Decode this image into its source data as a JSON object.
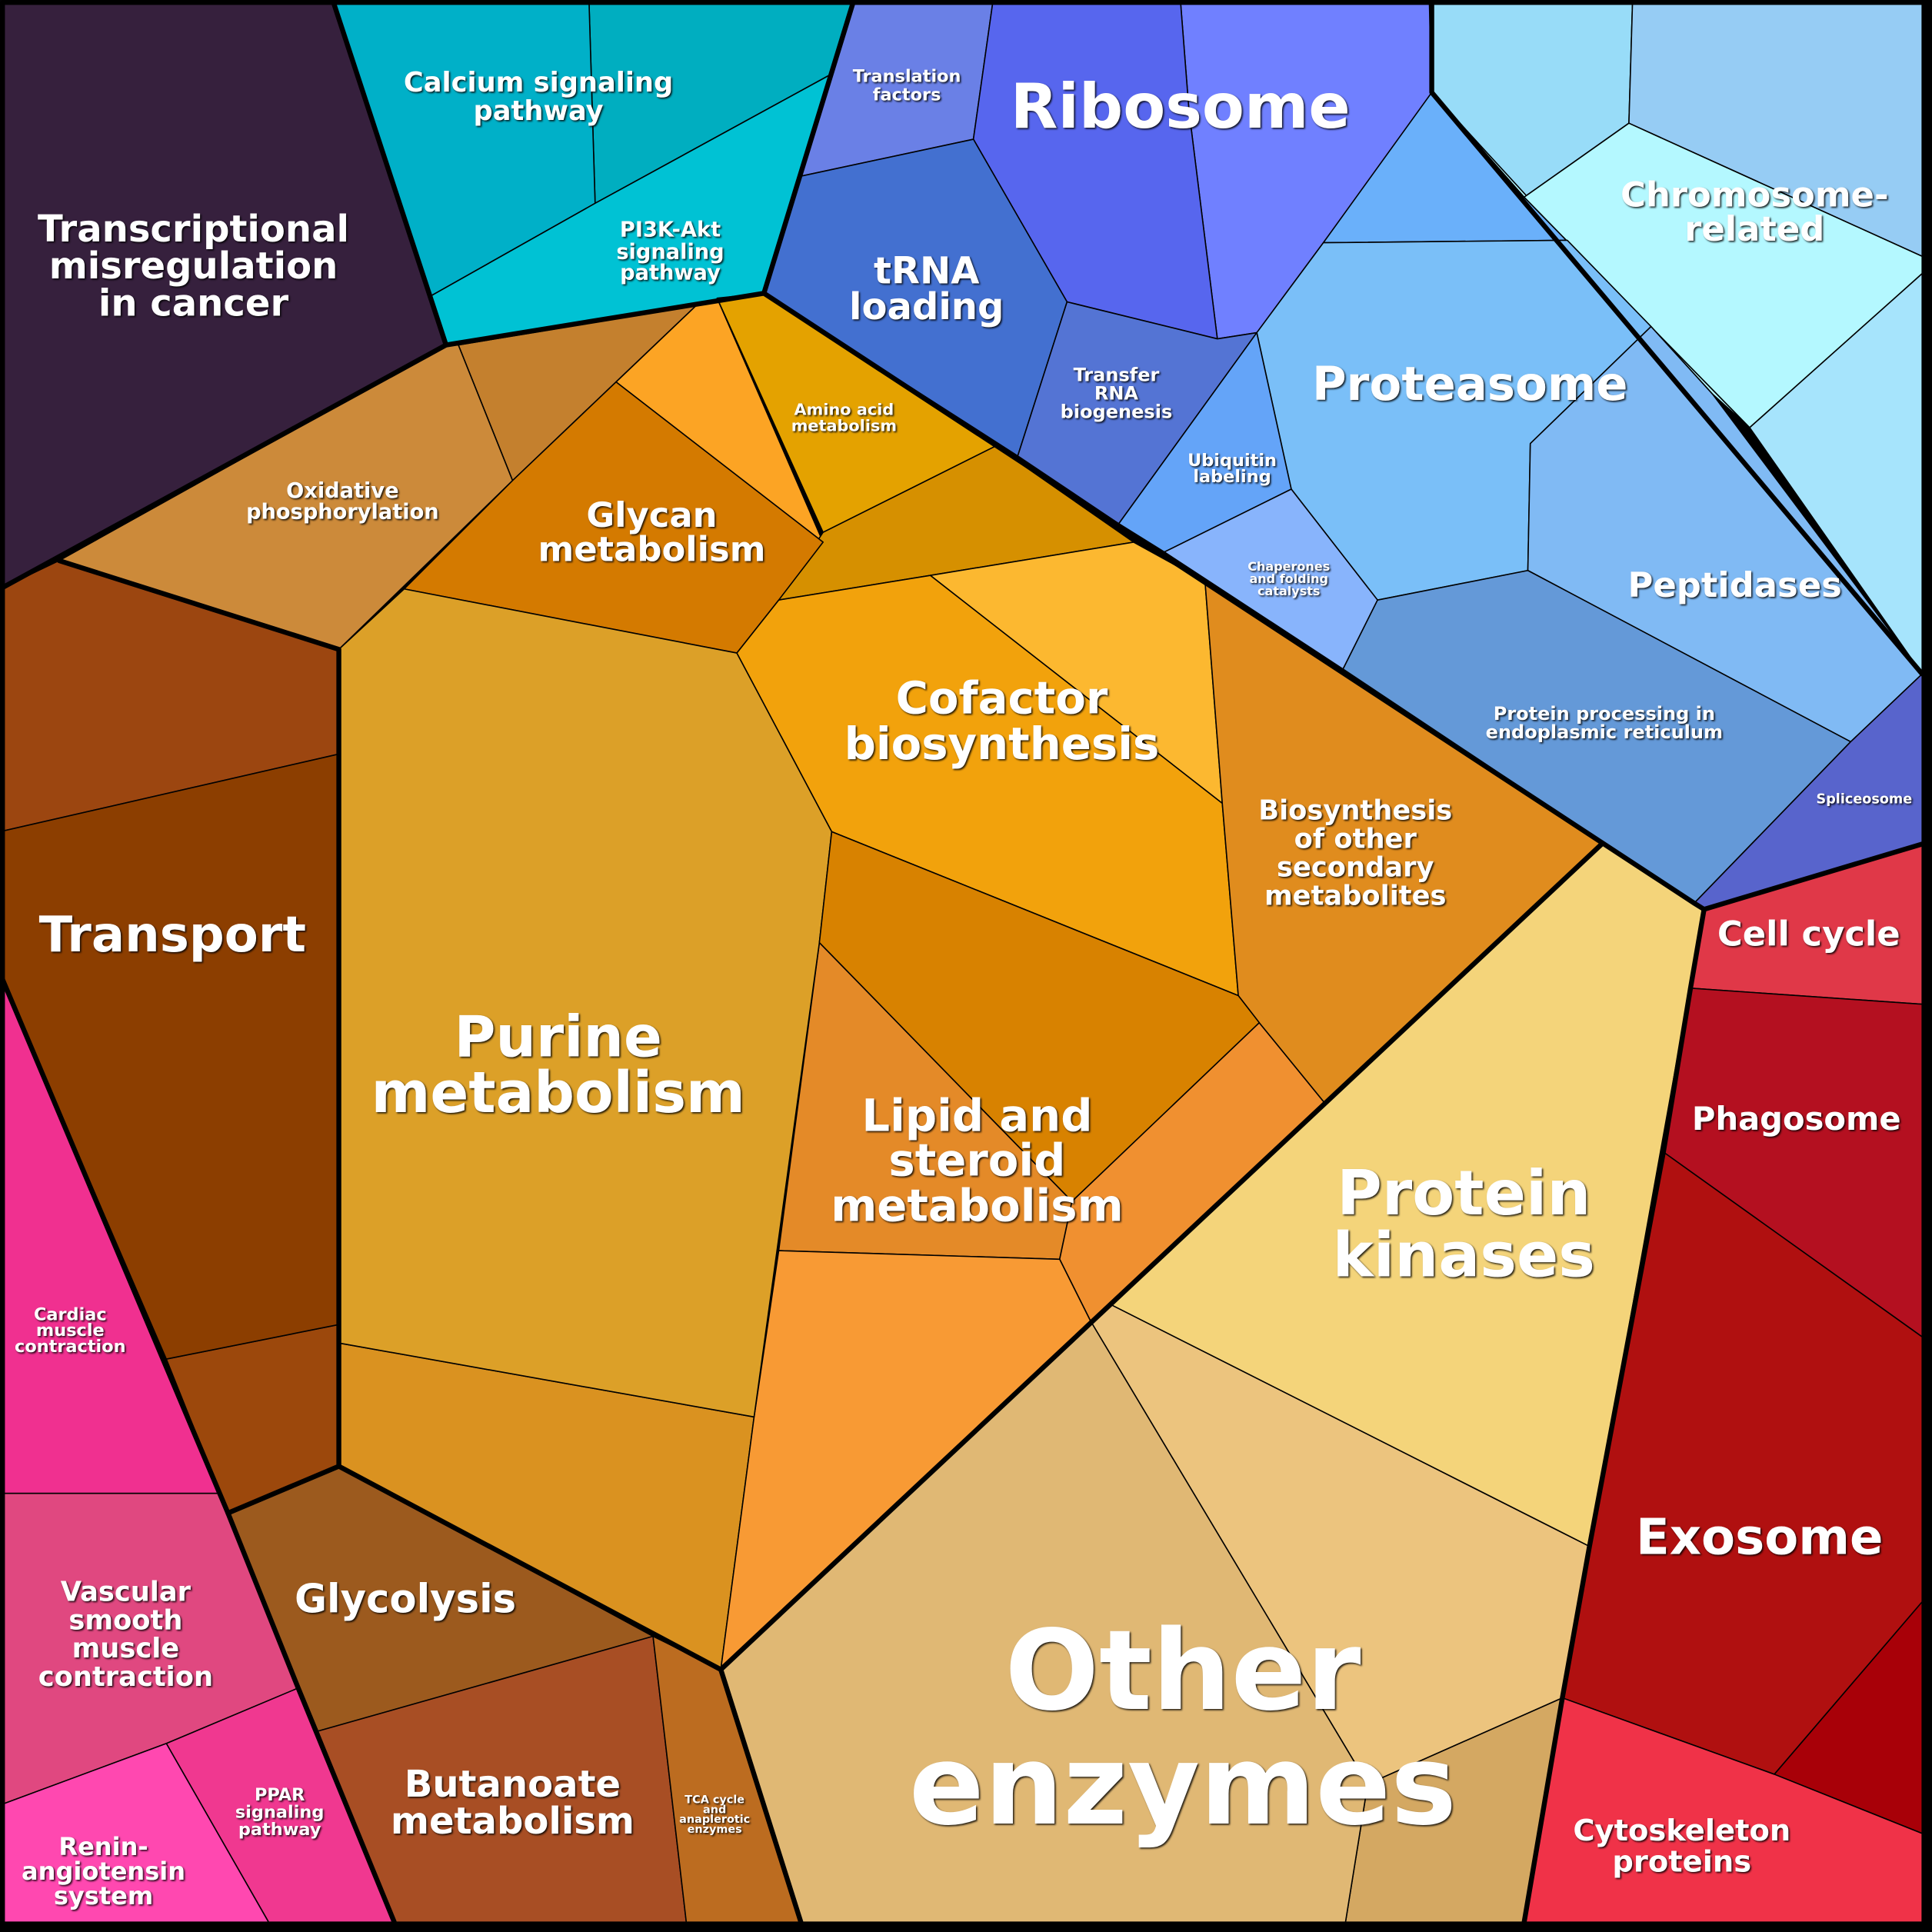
{
  "regions": [
    {
      "id": "transcriptional-misregulation",
      "lines": [
        "Transcriptional",
        "misregulation",
        "in cancer"
      ],
      "color": "#36203d"
    },
    {
      "id": "calcium-signaling",
      "lines": [
        "Calcium signaling",
        "pathway"
      ],
      "color": "#00b0c8"
    },
    {
      "id": "pi3k-akt",
      "lines": [
        "PI3K-Akt",
        "signaling",
        "pathway"
      ],
      "color": "#00c2d4"
    },
    {
      "id": "translation-factors",
      "lines": [
        "Translation",
        "factors"
      ],
      "color": "#6a80e6"
    },
    {
      "id": "ribosome",
      "lines": [
        "Ribosome"
      ],
      "color": "#5766ee"
    },
    {
      "id": "trna-loading",
      "lines": [
        "tRNA",
        "loading"
      ],
      "color": "#4370d0"
    },
    {
      "id": "transfer-rna-biogenesis",
      "lines": [
        "Transfer",
        "RNA",
        "biogenesis"
      ],
      "color": "#5474d4"
    },
    {
      "id": "chromosome-related",
      "lines": [
        "Chromosome-",
        "related"
      ],
      "color": "#b4f8ff"
    },
    {
      "id": "proteasome",
      "lines": [
        "Proteasome"
      ],
      "color": "#7abff8"
    },
    {
      "id": "ubiquitin-labeling",
      "lines": [
        "Ubiquitin",
        "labeling"
      ],
      "color": "#64a4f8"
    },
    {
      "id": "chaperones",
      "lines": [
        "Chaperones",
        "and folding",
        "catalysts"
      ],
      "color": "#88b4fc"
    },
    {
      "id": "peptidases",
      "lines": [
        "Peptidases"
      ],
      "color": "#80baf4"
    },
    {
      "id": "protein-processing-er",
      "lines": [
        "Protein processing in",
        "endoplasmic reticulum"
      ],
      "color": "#6499d8"
    },
    {
      "id": "spliceosome",
      "lines": [
        "Spliceosome"
      ],
      "color": "#5864cc"
    },
    {
      "id": "amino-acid-metabolism",
      "lines": [
        "Amino acid",
        "metabolism"
      ],
      "color": "#e4a200"
    },
    {
      "id": "oxidative-phosphorylation",
      "lines": [
        "Oxidative",
        "phosphorylation"
      ],
      "color": "#cc8a3a"
    },
    {
      "id": "glycan-metabolism",
      "lines": [
        "Glycan",
        "metabolism"
      ],
      "color": "#d47a00"
    },
    {
      "id": "cofactor-biosynthesis",
      "lines": [
        "Cofactor",
        "biosynthesis"
      ],
      "color": "#f2a20c"
    },
    {
      "id": "secondary-metabolites",
      "lines": [
        "Biosynthesis",
        "of other",
        "secondary",
        "metabolites"
      ],
      "color": "#e08c1e"
    },
    {
      "id": "transport",
      "lines": [
        "Transport"
      ],
      "color": "#8c3e00"
    },
    {
      "id": "purine-metabolism",
      "lines": [
        "Purine",
        "metabolism"
      ],
      "color": "#dca028"
    },
    {
      "id": "lipid-steroid-metabolism",
      "lines": [
        "Lipid and",
        "steroid",
        "metabolism"
      ],
      "color": "#d88200"
    },
    {
      "id": "protein-kinases",
      "lines": [
        "Protein",
        "kinases"
      ],
      "color": "#f4d47a"
    },
    {
      "id": "cell-cycle",
      "lines": [
        "Cell cycle"
      ],
      "color": "#e03848"
    },
    {
      "id": "phagosome",
      "lines": [
        "Phagosome"
      ],
      "color": "#b41020"
    },
    {
      "id": "exosome",
      "lines": [
        "Exosome"
      ],
      "color": "#b01010"
    },
    {
      "id": "cardiac-muscle",
      "lines": [
        "Cardiac",
        "muscle",
        "contraction"
      ],
      "color": "#f03090"
    },
    {
      "id": "vascular-smooth-muscle",
      "lines": [
        "Vascular",
        "smooth",
        "muscle",
        "contraction"
      ],
      "color": "#e04880"
    },
    {
      "id": "glycolysis",
      "lines": [
        "Glycolysis"
      ],
      "color": "#9c5a1e"
    },
    {
      "id": "other-enzymes",
      "lines": [
        "Other",
        "enzymes"
      ],
      "color": "#e0b874"
    },
    {
      "id": "butanoate-metabolism",
      "lines": [
        "Butanoate",
        "metabolism"
      ],
      "color": "#a84e24"
    },
    {
      "id": "tca-cycle",
      "lines": [
        "TCA cycle",
        "and",
        "anaplerotic",
        "enzymes"
      ],
      "color": "#bc6c20"
    },
    {
      "id": "ppar-signaling",
      "lines": [
        "PPAR",
        "signaling",
        "pathway"
      ],
      "color": "#f03890"
    },
    {
      "id": "renin-angiotensin",
      "lines": [
        "Renin-",
        "angiotensin",
        "system"
      ],
      "color": "#ff48b0"
    },
    {
      "id": "cytoskeleton-proteins",
      "lines": [
        "Cytoskeleton",
        "proteins"
      ],
      "color": "#f03248"
    }
  ]
}
